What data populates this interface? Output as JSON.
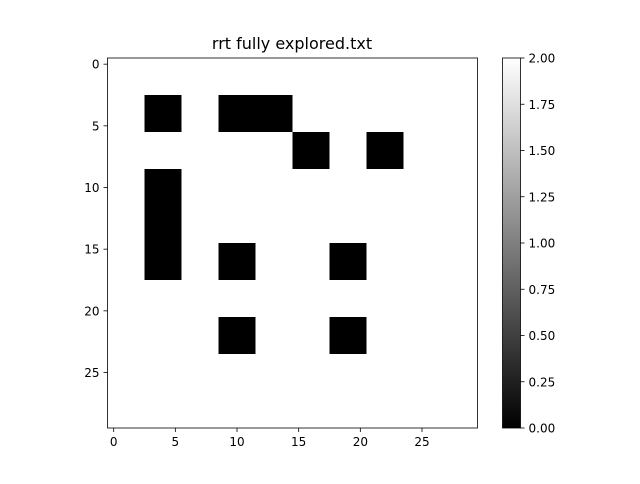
{
  "chart_data": {
    "type": "heatmap",
    "title": "rrt fully explored.txt",
    "xlabel": "",
    "ylabel": "",
    "grid_size": [
      30,
      30
    ],
    "xlim": [
      -0.5,
      29.5
    ],
    "ylim": [
      29.5,
      -0.5
    ],
    "x_ticks": [
      0,
      5,
      10,
      15,
      20,
      25
    ],
    "y_ticks": [
      0,
      5,
      10,
      15,
      20,
      25
    ],
    "colormap": "gray",
    "background_value": 2,
    "vmin": 0,
    "vmax": 2,
    "colorbar_ticks": [
      "0.00",
      "0.25",
      "0.50",
      "0.75",
      "1.00",
      "1.25",
      "1.50",
      "1.75",
      "2.00"
    ],
    "obstacles": [
      {
        "value": 0,
        "rows": [
          3,
          5
        ],
        "cols": [
          3,
          5
        ]
      },
      {
        "value": 0,
        "rows": [
          3,
          5
        ],
        "cols": [
          9,
          14
        ]
      },
      {
        "value": 0,
        "rows": [
          6,
          8
        ],
        "cols": [
          15,
          17
        ]
      },
      {
        "value": 0,
        "rows": [
          6,
          8
        ],
        "cols": [
          21,
          23
        ]
      },
      {
        "value": 0,
        "rows": [
          9,
          17
        ],
        "cols": [
          3,
          5
        ]
      },
      {
        "value": 0,
        "rows": [
          15,
          17
        ],
        "cols": [
          9,
          11
        ]
      },
      {
        "value": 0,
        "rows": [
          15,
          17
        ],
        "cols": [
          18,
          20
        ]
      },
      {
        "value": 0,
        "rows": [
          21,
          23
        ],
        "cols": [
          9,
          11
        ]
      },
      {
        "value": 0,
        "rows": [
          21,
          23
        ],
        "cols": [
          18,
          20
        ]
      }
    ]
  }
}
